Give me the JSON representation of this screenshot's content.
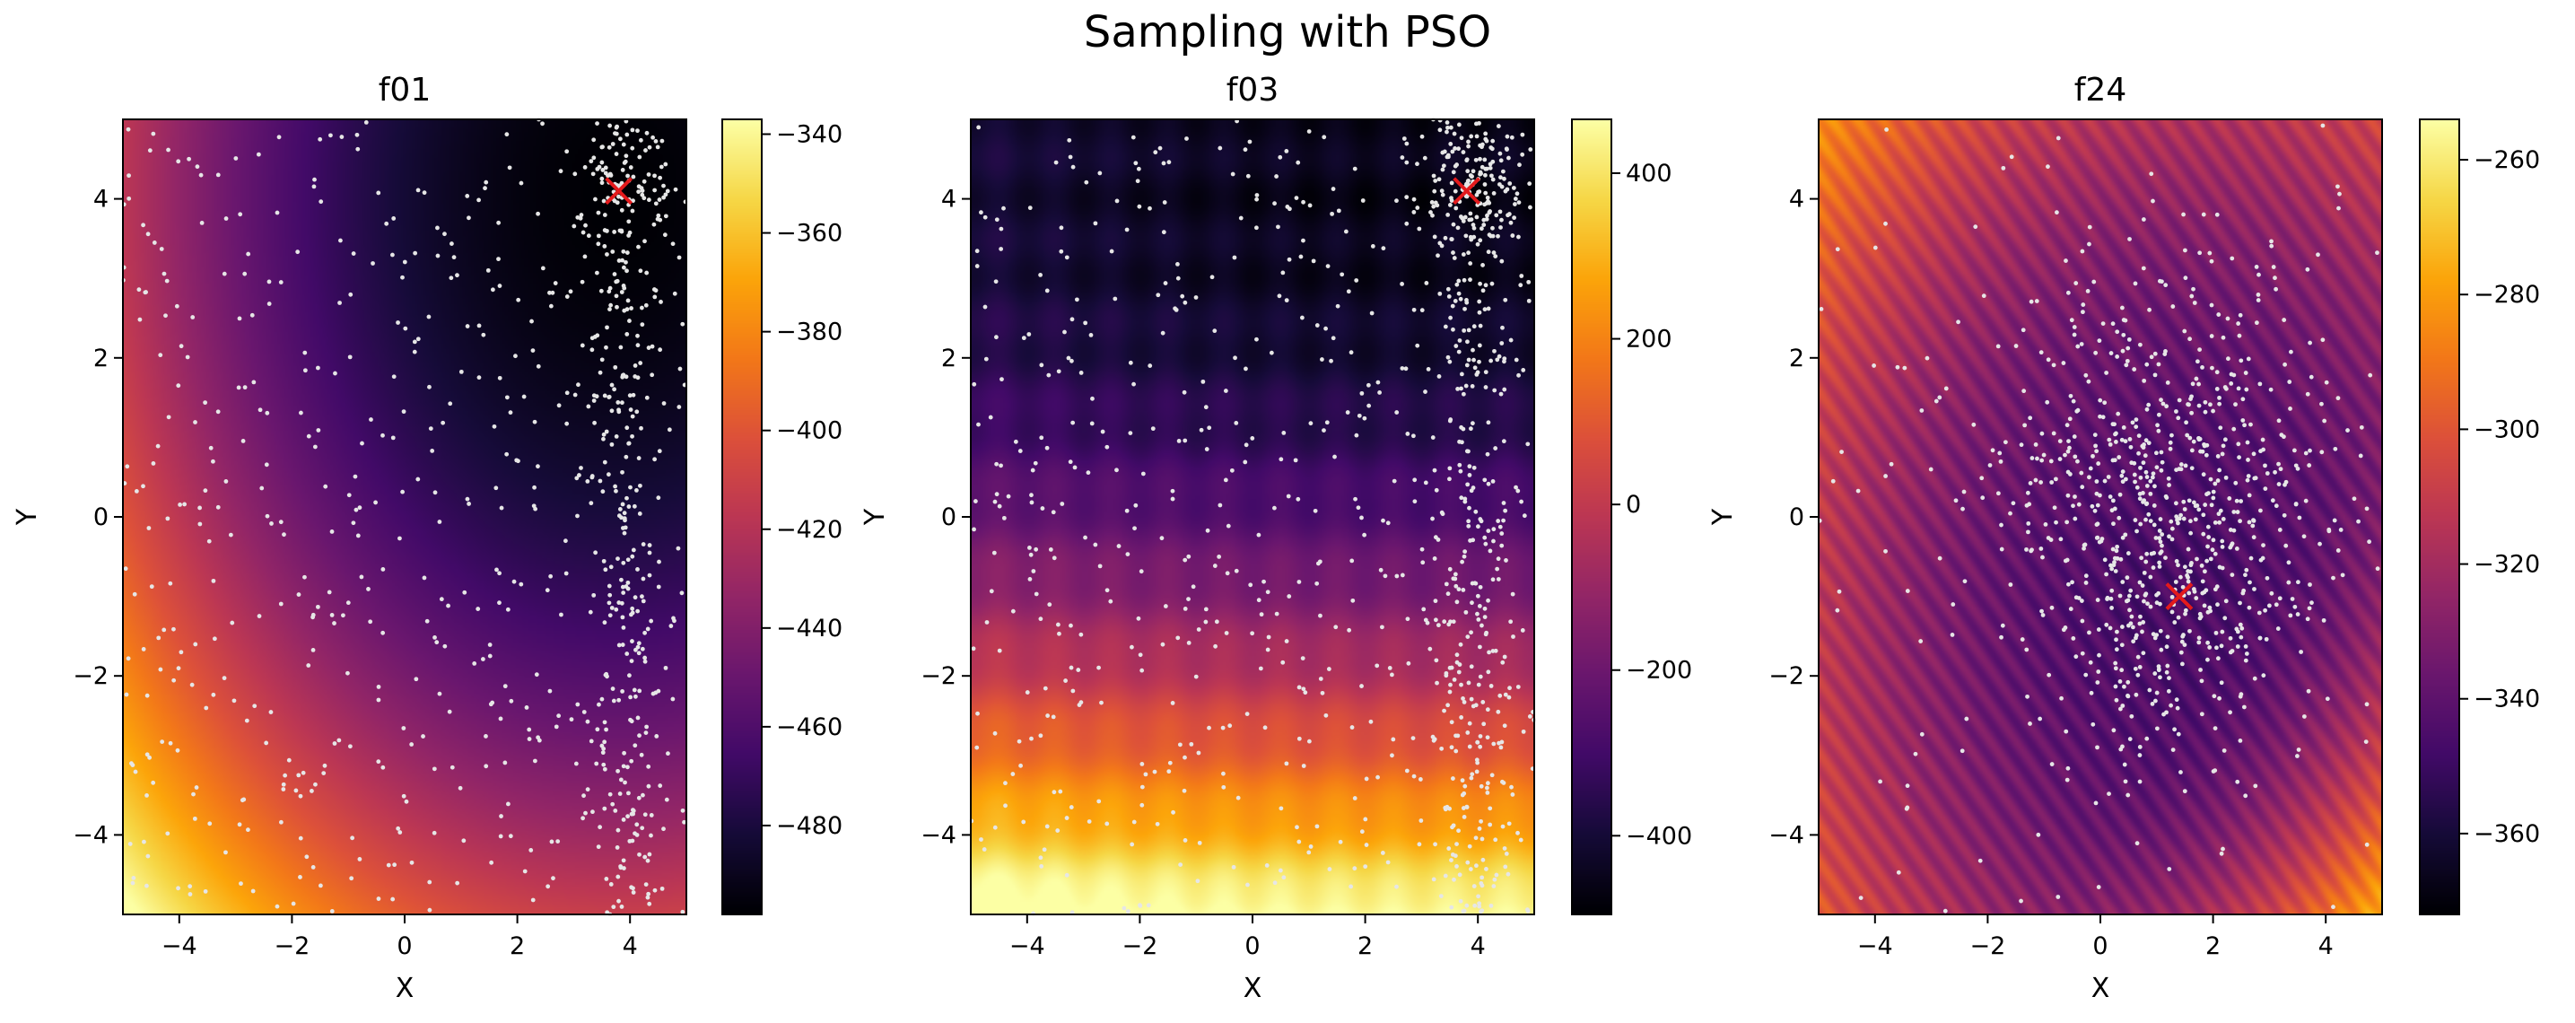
{
  "figure": {
    "title": "Sampling with PSO"
  },
  "colors": {
    "background": "#ffffff",
    "sample_points": "#e6e6e6",
    "best_marker": "#e41a1c",
    "colormap": "inferno"
  },
  "chart_data": [
    {
      "type": "heatmap",
      "title": "f01",
      "xlabel": "X",
      "ylabel": "Y",
      "xlim": [
        -5,
        5
      ],
      "ylim": [
        -5,
        5
      ],
      "xticks": [
        "−4",
        "−2",
        "0",
        "2",
        "4"
      ],
      "yticks": [
        "−4",
        "−2",
        "0",
        "2",
        "4"
      ],
      "colorbar": {
        "range": [
          -498,
          -337
        ],
        "ticks": [
          "−340",
          "−360",
          "−380",
          "−400",
          "−420",
          "−440",
          "−460",
          "−480"
        ],
        "tick_values": [
          -340,
          -360,
          -380,
          -400,
          -420,
          -440,
          -460,
          -480
        ]
      },
      "surface": "sphere",
      "optimum": [
        3.8,
        4.1
      ],
      "best_marker": [
        3.8,
        4.1
      ],
      "n_samples": 850
    },
    {
      "type": "heatmap",
      "title": "f03",
      "xlabel": "X",
      "ylabel": "Y",
      "xlim": [
        -5,
        5
      ],
      "ylim": [
        -5,
        5
      ],
      "xticks": [
        "−4",
        "−2",
        "0",
        "2",
        "4"
      ],
      "yticks": [
        "−4",
        "−2",
        "0",
        "2",
        "4"
      ],
      "colorbar": {
        "range": [
          -495,
          465
        ],
        "ticks": [
          "400",
          "200",
          "0",
          "−200",
          "−400"
        ],
        "tick_values": [
          400,
          200,
          0,
          -200,
          -400
        ]
      },
      "surface": "rastrigin-like",
      "optimum": [
        3.8,
        4.1
      ],
      "best_marker": [
        3.8,
        4.1
      ],
      "n_samples": 1000
    },
    {
      "type": "heatmap",
      "title": "f24",
      "xlabel": "X",
      "ylabel": "Y",
      "xlim": [
        -5,
        5
      ],
      "ylim": [
        -5,
        5
      ],
      "xticks": [
        "−4",
        "−2",
        "0",
        "2",
        "4"
      ],
      "yticks": [
        "−4",
        "−2",
        "0",
        "2",
        "4"
      ],
      "colorbar": {
        "range": [
          -372,
          -254
        ],
        "ticks": [
          "−260",
          "−280",
          "−300",
          "−320",
          "−340",
          "−360"
        ],
        "tick_values": [
          -260,
          -280,
          -300,
          -320,
          -340,
          -360
        ]
      },
      "surface": "lunacek-like",
      "optimum": [
        1.4,
        -1.0
      ],
      "best_marker": [
        1.4,
        -1.0
      ],
      "n_samples": 900
    }
  ]
}
